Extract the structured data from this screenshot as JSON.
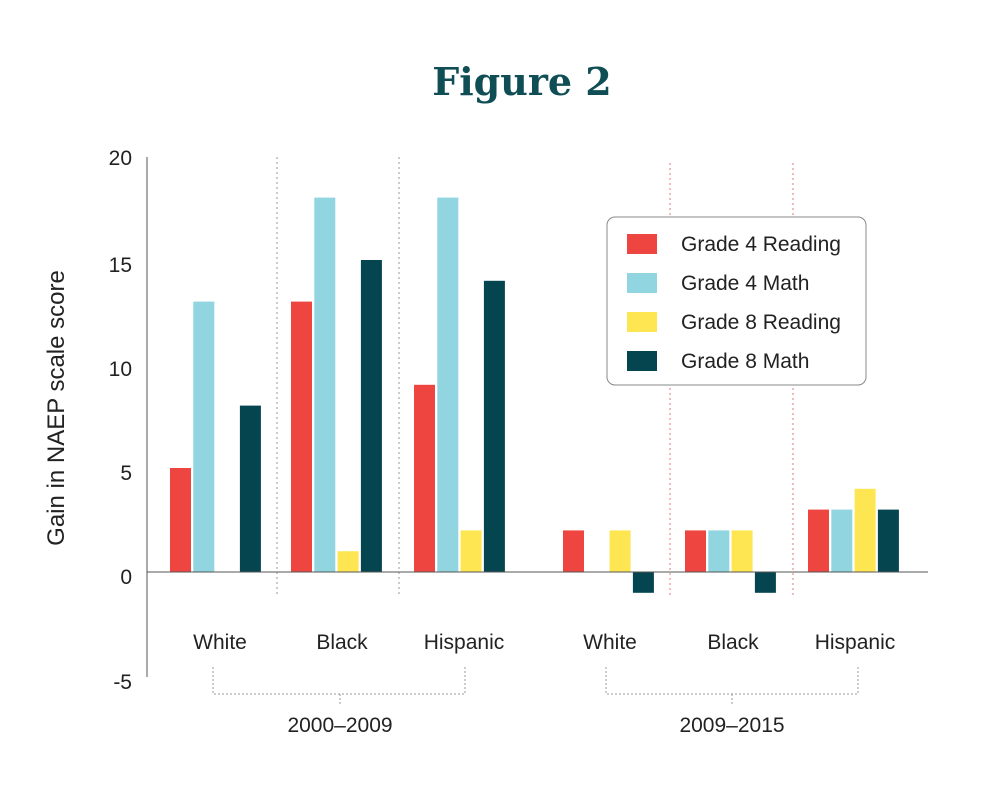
{
  "title": "Figure 2",
  "chart_data": {
    "type": "bar",
    "ylabel": "Gain in NAEP scale score",
    "ylim": [
      -5,
      20
    ],
    "yticks": [
      "20",
      "15",
      "10",
      "5",
      "0",
      "-5"
    ],
    "categories": [
      "White",
      "Black",
      "Hispanic",
      "White",
      "Black",
      "Hispanic"
    ],
    "periods": [
      "2000–2009",
      "2009–2015"
    ],
    "series": [
      {
        "name": "Grade 4 Reading",
        "color": "#ef4540",
        "values": [
          5,
          13,
          9,
          2,
          2,
          3
        ]
      },
      {
        "name": "Grade 4 Math",
        "color": "#90d5e0",
        "values": [
          13,
          18,
          18,
          null,
          2,
          3
        ]
      },
      {
        "name": "Grade 8 Reading",
        "color": "#fde651",
        "values": [
          null,
          1,
          2,
          2,
          2,
          4
        ]
      },
      {
        "name": "Grade 8 Math",
        "color": "#044550",
        "values": [
          8,
          15,
          14,
          -1,
          -1,
          3
        ]
      }
    ],
    "legend": "top-right",
    "grid": false
  }
}
